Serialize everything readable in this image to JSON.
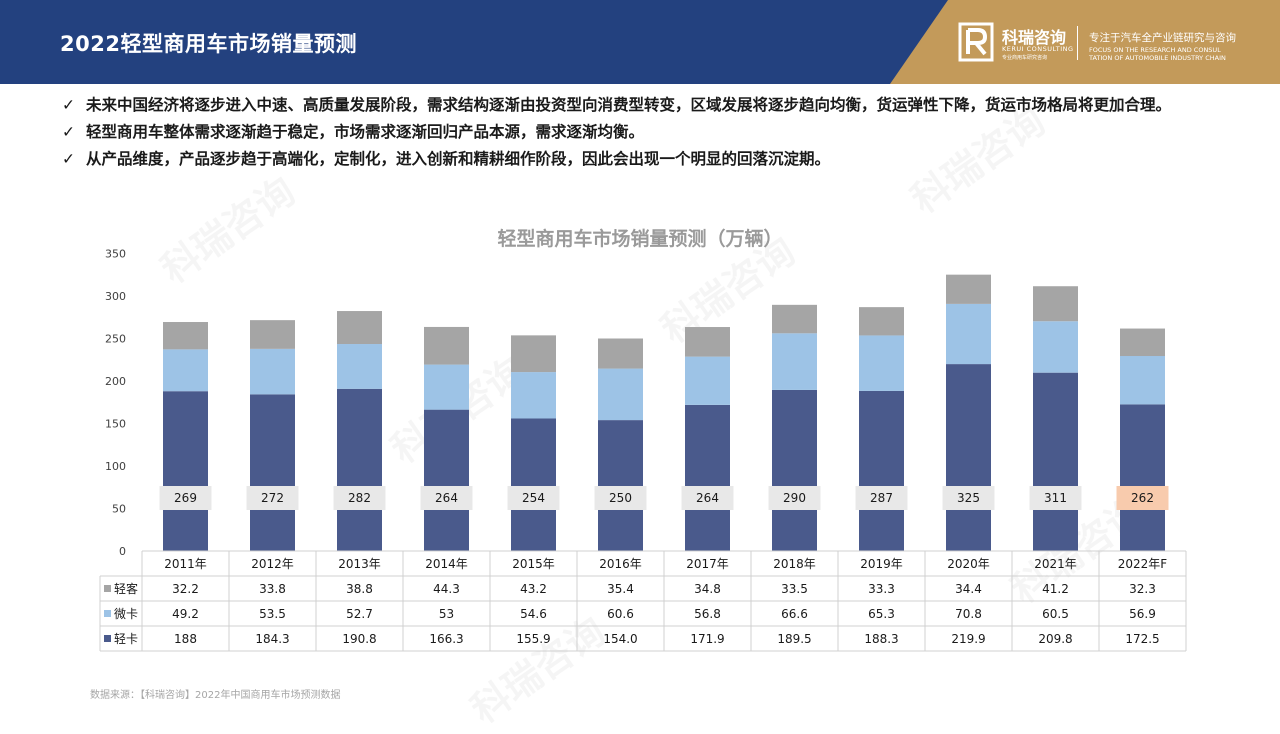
{
  "header": {
    "title": "2022轻型商用车市场销量预测",
    "logo_name": "科瑞咨询",
    "logo_en": "KERUI CONSULTING",
    "logo_cn_small": "专业商用车研究咨询",
    "slogan": "专注于汽车全产业链研究与咨询",
    "slogan_en_1": "FOCUS ON THE RESEARCH AND CONSUL",
    "slogan_en_2": "TATION OF AUTOMOBILE INDUSTRY CHAIN",
    "colors": {
      "navy": "#23417f",
      "gold": "#c39a5a"
    }
  },
  "bullets": [
    "未来中国经济将逐步进入中速、高质量发展阶段，需求结构逐渐由投资型向消费型转变，区域发展将逐步趋向均衡，货运弹性下降，货运市场格局将更加合理。",
    "轻型商用车整体需求逐渐趋于稳定，市场需求逐渐回归产品本源，需求逐渐均衡。",
    "从产品维度，产品逐步趋于高端化，定制化，进入创新和精耕细作阶段，因此会出现一个明显的回落沉淀期。"
  ],
  "bullet_mark": "✓",
  "chart_data": {
    "type": "bar",
    "stacked": true,
    "title": "轻型商用车市场销量预测（万辆）",
    "categories": [
      "2011年",
      "2012年",
      "2013年",
      "2014年",
      "2015年",
      "2016年",
      "2017年",
      "2018年",
      "2019年",
      "2020年",
      "2021年",
      "2022年F"
    ],
    "series": [
      {
        "name": "轻卡",
        "color": "#4a5a8c",
        "values": [
          188,
          184.3,
          190.8,
          166.3,
          155.9,
          154.0,
          171.9,
          189.5,
          188.3,
          219.9,
          209.8,
          172.5
        ],
        "labels": [
          "188",
          "184.3",
          "190.8",
          "166.3",
          "155.9",
          "154.0",
          "171.9",
          "189.5",
          "188.3",
          "219.9",
          "209.8",
          "172.5"
        ]
      },
      {
        "name": "微卡",
        "color": "#9dc3e6",
        "values": [
          49.2,
          53.5,
          52.7,
          53,
          54.6,
          60.6,
          56.8,
          66.6,
          65.3,
          70.8,
          60.5,
          56.9
        ],
        "labels": [
          "49.2",
          "53.5",
          "52.7",
          "53",
          "54.6",
          "60.6",
          "56.8",
          "66.6",
          "65.3",
          "70.8",
          "60.5",
          "56.9"
        ]
      },
      {
        "name": "轻客",
        "color": "#a5a5a5",
        "values": [
          32.2,
          33.8,
          38.8,
          44.3,
          43.2,
          35.4,
          34.8,
          33.5,
          33.3,
          34.4,
          41.2,
          32.3
        ],
        "labels": [
          "32.2",
          "33.8",
          "38.8",
          "44.3",
          "43.2",
          "35.4",
          "34.8",
          "33.5",
          "33.3",
          "34.4",
          "41.2",
          "32.3"
        ]
      }
    ],
    "table_row_order": [
      "轻客",
      "微卡",
      "轻卡"
    ],
    "totals": [
      "269",
      "272",
      "282",
      "264",
      "254",
      "250",
      "264",
      "290",
      "287",
      "325",
      "311",
      "262"
    ],
    "total_box_color": "#e8e8e8",
    "total_highlight_color": "#f8cbad",
    "highlight_index": 11,
    "yticks": [
      "0",
      "50",
      "100",
      "150",
      "200",
      "250",
      "300",
      "350"
    ],
    "ylim": [
      0,
      350
    ],
    "grid": false,
    "legend": "data-table"
  },
  "source": "数据来源：【科瑞咨询】2022年中国商用车市场预测数据",
  "watermark": "科瑞咨询"
}
